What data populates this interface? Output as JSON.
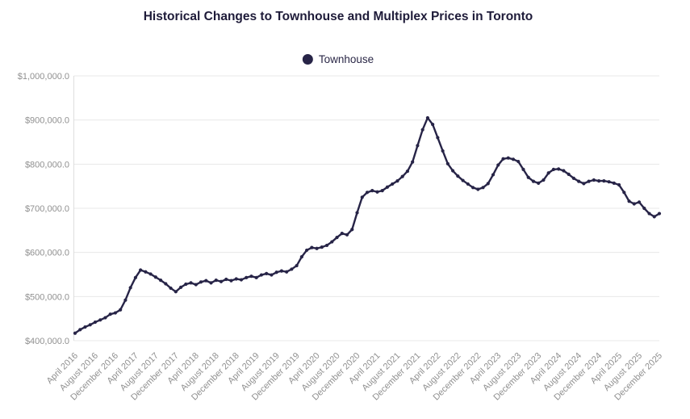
{
  "title": "Historical Changes to Townhouse and Multiplex Prices in Toronto",
  "legend": {
    "position": "top",
    "items": [
      {
        "label": "Townhouse"
      }
    ]
  },
  "colors": {
    "line": "#272447",
    "marker": "#272447",
    "title_text": "#1e1b39",
    "legend_text": "#2b2847",
    "axis_text": "#909090",
    "gridline": "#e8e8e8",
    "axis_line": "#dedede",
    "background": "#ffffff"
  },
  "chart_data": {
    "type": "line",
    "title": "Historical Changes to Townhouse and Multiplex Prices in Toronto",
    "x_frequency": "monthly",
    "x_start": "April 2016",
    "x_end": "December 2025",
    "x_tick_labels": [
      "April 2016",
      "August 2016",
      "December 2016",
      "April 2017",
      "August 2017",
      "December 2017",
      "April 2018",
      "August 2018",
      "December 2018",
      "April 2019",
      "August 2019",
      "December 2019",
      "April 2020",
      "August 2020",
      "December 2020",
      "April 2021",
      "August 2021",
      "December 2021",
      "April 2022",
      "August 2022",
      "December 2022",
      "April 2023",
      "August 2023",
      "December 2023",
      "April 2024",
      "August 2024",
      "December 2024",
      "April 2025",
      "August 2025",
      "December 2025"
    ],
    "x_ticks_every_n_points": 4,
    "y_ticks": [
      400000,
      500000,
      600000,
      700000,
      800000,
      900000,
      1000000
    ],
    "y_tick_labels": [
      "$400,000.0",
      "$500,000.0",
      "$600,000.0",
      "$700,000.0",
      "$800,000.0",
      "$900,000.0",
      "$1,000,000.0"
    ],
    "ylim": [
      400000,
      1000000
    ],
    "grid": "horizontal",
    "legend_position": "top",
    "series": [
      {
        "name": "Townhouse",
        "values": [
          417000,
          425000,
          431000,
          436000,
          442000,
          447000,
          452000,
          460000,
          463000,
          470000,
          492000,
          520000,
          543000,
          560000,
          556000,
          551000,
          544000,
          537000,
          529000,
          519000,
          511000,
          521000,
          528000,
          531000,
          527000,
          533000,
          536000,
          531000,
          537000,
          534000,
          539000,
          536000,
          540000,
          538000,
          543000,
          546000,
          543000,
          549000,
          552000,
          549000,
          555000,
          558000,
          556000,
          562000,
          570000,
          590000,
          605000,
          611000,
          609000,
          612000,
          616000,
          624000,
          634000,
          643000,
          640000,
          652000,
          690000,
          725000,
          736000,
          740000,
          737000,
          740000,
          748000,
          755000,
          762000,
          772000,
          784000,
          805000,
          842000,
          878000,
          905000,
          890000,
          860000,
          830000,
          801000,
          785000,
          773000,
          763000,
          755000,
          747000,
          743000,
          747000,
          756000,
          776000,
          798000,
          812000,
          814000,
          811000,
          806000,
          788000,
          770000,
          761000,
          757000,
          764000,
          780000,
          788000,
          789000,
          785000,
          777000,
          768000,
          761000,
          756000,
          761000,
          764000,
          762000,
          762000,
          760000,
          757000,
          753000,
          736000,
          716000,
          710000,
          714000,
          700000,
          688000,
          681000,
          688000
        ]
      }
    ]
  }
}
